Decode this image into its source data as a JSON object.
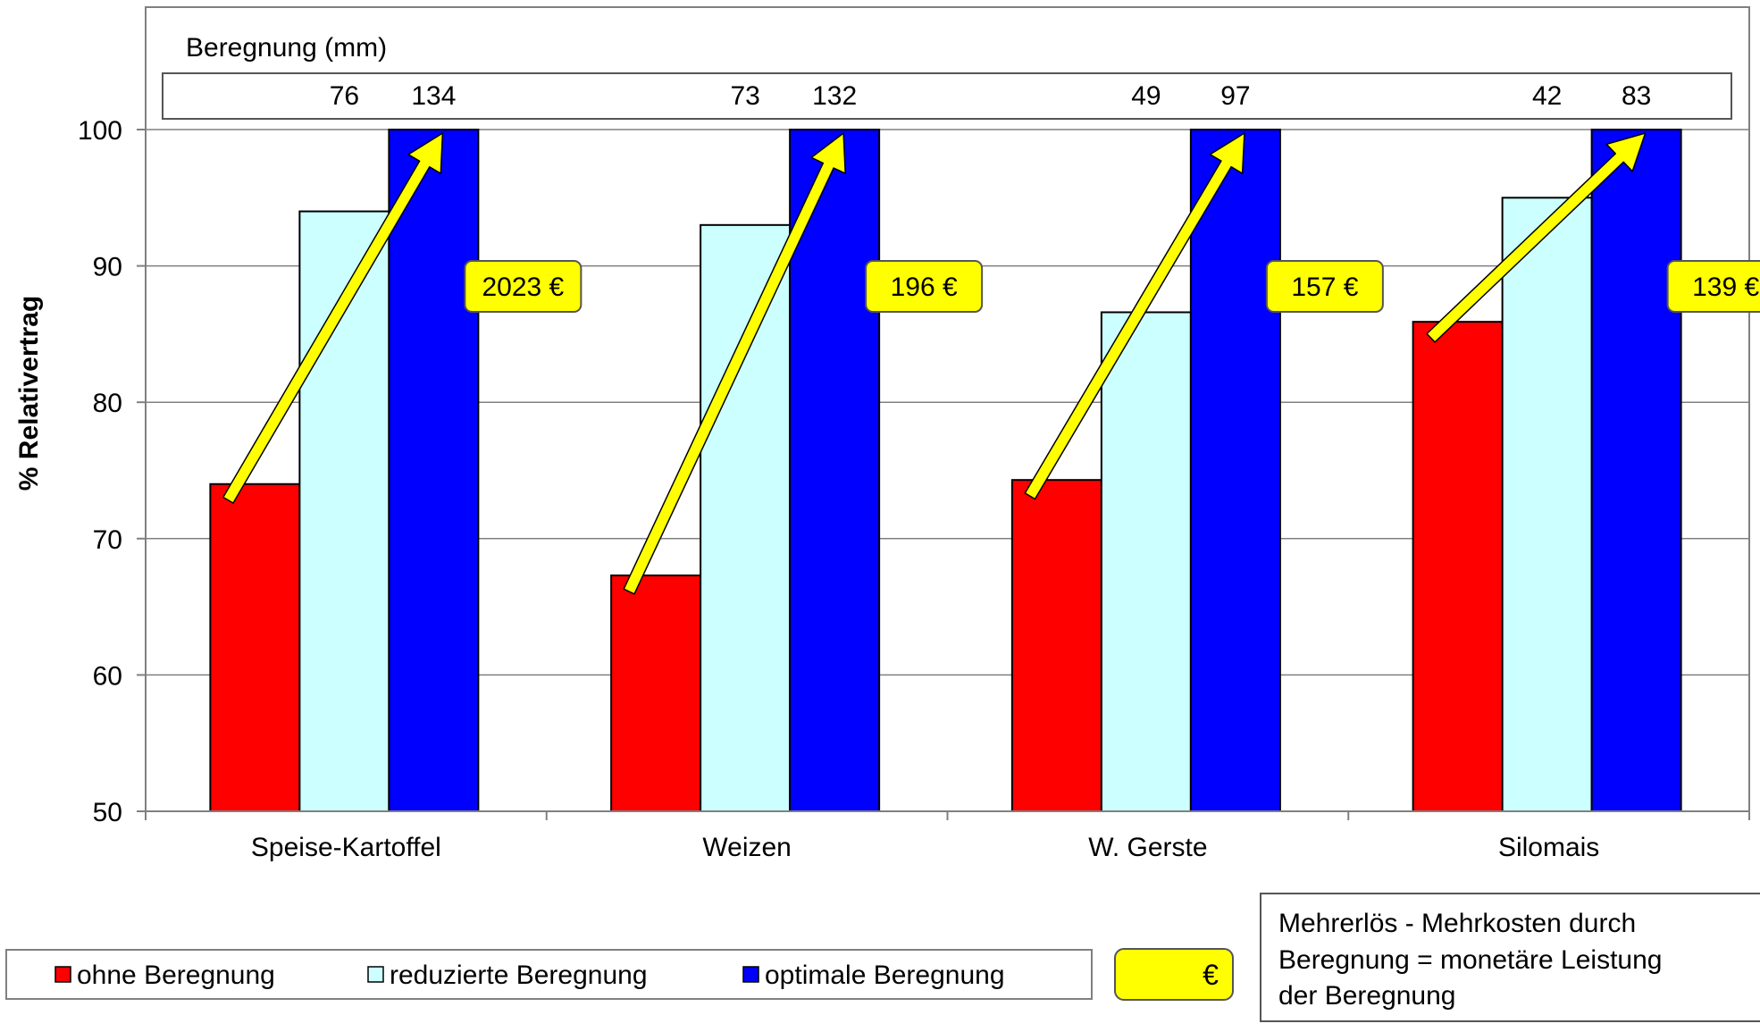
{
  "chart_data": {
    "type": "bar",
    "ylabel": "% Relativertrag",
    "ylim": [
      50,
      100
    ],
    "yticks": [
      50,
      60,
      70,
      80,
      90,
      100
    ],
    "grid": true,
    "categories": [
      "Speise-Kartoffel",
      "Weizen",
      "W. Gerste",
      "Silomais"
    ],
    "series": [
      {
        "name": "ohne Beregnung",
        "color": "#ff0000",
        "values": [
          74,
          67.3,
          74.3,
          85.9
        ]
      },
      {
        "name": "reduzierte Beregnung",
        "color": "#ccffff",
        "values": [
          94,
          93,
          86.6,
          95
        ]
      },
      {
        "name": "optimale Beregnung",
        "color": "#0000ff",
        "values": [
          100,
          100,
          100,
          100
        ]
      }
    ],
    "irrigation": {
      "title": "Beregnung (mm)",
      "reduced": [
        "76",
        "73",
        "49",
        "42"
      ],
      "optimal": [
        "134",
        "132",
        "97",
        "83"
      ]
    },
    "gains": [
      "2023 €",
      "196 €",
      "157 €",
      "139 €"
    ],
    "gain_legend": {
      "symbol": "€",
      "text_lines": [
        "Mehrerlös - Mehrkosten durch",
        "Beregnung = monetäre Leistung",
        "der Beregnung"
      ]
    },
    "legend_position": "bottom",
    "arrow_color": "#ffff00",
    "label_box_color": "#ffff00"
  }
}
